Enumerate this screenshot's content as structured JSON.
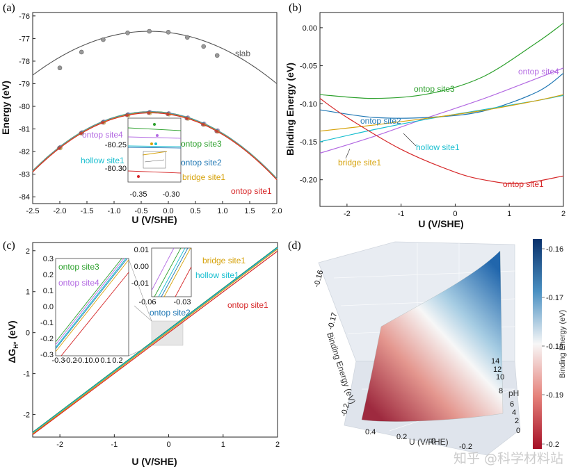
{
  "chart_data": [
    {
      "panel": "(a)",
      "type": "line",
      "xlabel": "U (V/SHE)",
      "ylabel": "Energy (eV)",
      "xlim": [
        -2.5,
        2.0
      ],
      "ylim": [
        -84.3,
        -75.85
      ],
      "xticks": [
        "-2.5",
        "-2.0",
        "-1.5",
        "-1.0",
        "-0.5",
        "0.0",
        "0.5",
        "1.0",
        "1.5",
        "2.0"
      ],
      "yticks": [
        "-76",
        "-77",
        "-78",
        "-79",
        "-80",
        "-81",
        "-82",
        "-83",
        "-84"
      ],
      "series": [
        {
          "name": "slab",
          "color": "#555555",
          "x": [
            -2.0,
            -1.6,
            -1.2,
            -0.75,
            -0.35,
            0.0,
            0.35,
            0.65,
            0.9
          ],
          "y": [
            -78.3,
            -77.6,
            -77.05,
            -76.75,
            -76.68,
            -76.72,
            -76.95,
            -77.35,
            -77.75
          ]
        },
        {
          "name": "ontop site3",
          "color": "#2ca02c"
        },
        {
          "name": "ontop site4",
          "color": "#b36ae2"
        },
        {
          "name": "hollow site1",
          "color": "#17becf"
        },
        {
          "name": "ontop site2",
          "color": "#1f77b4"
        },
        {
          "name": "bridge site1",
          "color": "#d6a20b"
        },
        {
          "name": "ontop site1",
          "color": "#d62728"
        }
      ],
      "inset": {
        "xticks": [
          "-0.35",
          "-0.30"
        ],
        "yticks": [
          "-80.25",
          "-80.30"
        ]
      }
    },
    {
      "panel": "(b)",
      "type": "line",
      "xlabel": "U (V/SHE)",
      "ylabel": "Binding Energy (eV)",
      "xlim": [
        -2.5,
        2.0
      ],
      "ylim": [
        -0.235,
        0.02
      ],
      "xticks": [
        "-2",
        "-1",
        "0",
        "1",
        "2"
      ],
      "yticks": [
        "0.00",
        "-0.05",
        "-0.10",
        "-0.15",
        "-0.20"
      ],
      "series": [
        {
          "name": "ontop site3",
          "color": "#2ca02c",
          "x": [
            -2.5,
            -1.5,
            -0.5,
            0.5,
            1.5,
            2.0
          ],
          "y": [
            -0.088,
            -0.093,
            -0.087,
            -0.065,
            -0.02,
            0.006
          ]
        },
        {
          "name": "ontop site4",
          "color": "#b36ae2",
          "x": [
            -2.5,
            -1.5,
            -0.5,
            0.5,
            1.5,
            2.0
          ],
          "y": [
            -0.165,
            -0.143,
            -0.118,
            -0.094,
            -0.067,
            -0.053
          ]
        },
        {
          "name": "ontop site2",
          "color": "#1f77b4",
          "x": [
            -2.5,
            -1.5,
            -0.5,
            0.5,
            1.5,
            2.0
          ],
          "y": [
            -0.108,
            -0.118,
            -0.118,
            -0.11,
            -0.085,
            -0.06
          ]
        },
        {
          "name": "hollow site1",
          "color": "#17becf",
          "x": [
            -2.5,
            -1.5,
            -0.5,
            0.5,
            1.5,
            2.0
          ],
          "y": [
            -0.15,
            -0.134,
            -0.12,
            -0.108,
            -0.096,
            -0.089
          ]
        },
        {
          "name": "bridge site1",
          "color": "#d6a20b",
          "x": [
            -2.5,
            -1.5,
            -0.5,
            0.5,
            1.5,
            2.0
          ],
          "y": [
            -0.136,
            -0.128,
            -0.119,
            -0.109,
            -0.096,
            -0.088
          ]
        },
        {
          "name": "ontop site1",
          "color": "#d62728",
          "x": [
            -2.5,
            -2.0,
            -1.0,
            0.0,
            0.6,
            1.2,
            2.0
          ],
          "y": [
            -0.093,
            -0.118,
            -0.16,
            -0.19,
            -0.201,
            -0.205,
            -0.195
          ]
        }
      ]
    },
    {
      "panel": "(c)",
      "type": "line",
      "xlabel": "U (V/SHE)",
      "ylabel": "ΔG",
      "ylabel_sub": "H*",
      "ylabel_unit": " (eV)",
      "xlim": [
        -2.5,
        2.0
      ],
      "ylim": [
        -2.55,
        2.2
      ],
      "xticks": [
        "-2",
        "-1",
        "0",
        "1",
        "2"
      ],
      "yticks": [
        "2",
        "1",
        "0",
        "-1",
        "-2"
      ],
      "series": [
        {
          "name": "ontop site3",
          "color": "#2ca02c",
          "x": [
            -2.5,
            2.0
          ],
          "y": [
            -2.43,
            2.09
          ]
        },
        {
          "name": "ontop site4",
          "color": "#b36ae2",
          "x": [
            -2.5,
            2.0
          ],
          "y": [
            -2.46,
            2.06
          ]
        },
        {
          "name": "ontop site2",
          "color": "#1f77b4",
          "x": [
            -2.5,
            2.0
          ],
          "y": [
            -2.44,
            2.08
          ]
        },
        {
          "name": "hollow site1",
          "color": "#17becf",
          "x": [
            -2.5,
            2.0
          ],
          "y": [
            -2.45,
            2.07
          ]
        },
        {
          "name": "bridge site1",
          "color": "#d6a20b",
          "x": [
            -2.5,
            2.0
          ],
          "y": [
            -2.47,
            2.04
          ]
        },
        {
          "name": "ontop site1",
          "color": "#d62728",
          "x": [
            -2.5,
            2.0
          ],
          "y": [
            -2.49,
            1.99
          ]
        }
      ],
      "inset1": {
        "xticks": [
          "-0.3",
          "-0.2",
          "-0.1",
          "0.0",
          "0.1",
          "0.2"
        ],
        "yticks": [
          "0.3",
          "0.2",
          "0.1",
          "0.0",
          "-0.1",
          "-0.2",
          "-0.3"
        ]
      },
      "inset2": {
        "xticks": [
          "-0.06",
          "-0.03"
        ],
        "yticks": [
          "0.01",
          "0.00",
          "-0.01"
        ]
      }
    },
    {
      "panel": "(d)",
      "type": "surface",
      "xlabel": "U (V/RHE)",
      "ylabel": "Binding Energy (eV)",
      "zlabel": "pH",
      "ph_ticks": [
        "14",
        "12",
        "10",
        "8",
        "6",
        "4",
        "2",
        "0"
      ],
      "u_ticks": [
        "0.4",
        "0.2",
        "0",
        "-0.2"
      ],
      "be_ticks": [
        "-0.16",
        "-0.17",
        "-0.2"
      ],
      "colorbar": {
        "label": "Binding Energy (eV)",
        "ticks": [
          "-0.16",
          "-0.17",
          "-0.18",
          "-0.19",
          "-0.2"
        ],
        "colors": [
          "#08306b",
          "#4a90c2",
          "#f7f7f7",
          "#e5817a",
          "#a50f26"
        ]
      }
    }
  ],
  "watermark": "知乎 @科学材料站"
}
